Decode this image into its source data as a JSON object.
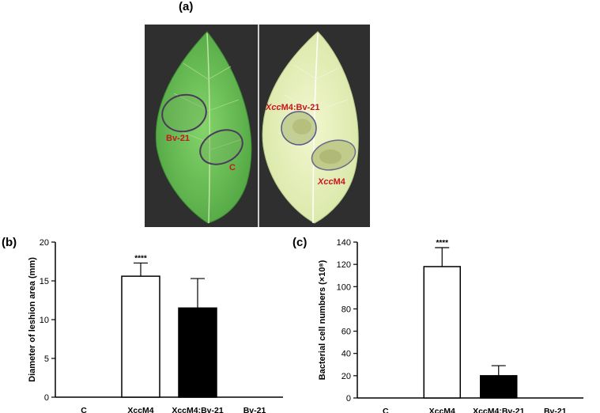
{
  "panel_labels": {
    "a": "(a)",
    "b": "(b)",
    "c": "(c)"
  },
  "photo": {
    "left_leaf_labels": [
      "Bv-21",
      "C"
    ],
    "right_leaf_labels": [
      {
        "italic": "Xcc",
        "rest": "M4:Bv-21"
      },
      {
        "italic": "Xcc",
        "rest": "M4"
      }
    ],
    "label_color": "#c8161d"
  },
  "chart_data": [
    {
      "type": "bar",
      "panel": "(b)",
      "categories": [
        "C",
        "XccM4",
        "XccM4:Bv-21",
        "Bv-21"
      ],
      "values": [
        0,
        15.6,
        11.5,
        0
      ],
      "errors": [
        0,
        1.7,
        3.8,
        0
      ],
      "bar_fill": [
        "#ffffff",
        "#ffffff",
        "#000000",
        "#ffffff"
      ],
      "significance": [
        "",
        "****",
        "",
        ""
      ],
      "ylabel": "Diameter of leshion area (mm)",
      "ylim": [
        0,
        20
      ],
      "yticks": [
        0,
        5,
        10,
        15,
        20
      ],
      "grid": false
    },
    {
      "type": "bar",
      "panel": "(c)",
      "categories": [
        "C",
        "XccM4",
        "XccM4:Bv-21",
        "Bv-21"
      ],
      "values": [
        0,
        118,
        20,
        0
      ],
      "errors": [
        0,
        17,
        9,
        0
      ],
      "bar_fill": [
        "#ffffff",
        "#ffffff",
        "#000000",
        "#ffffff"
      ],
      "significance": [
        "",
        "****",
        "",
        ""
      ],
      "ylabel": "Bacterial cell numbers (×10⁸)",
      "ylim": [
        0,
        140
      ],
      "yticks": [
        0,
        20,
        40,
        60,
        80,
        100,
        120,
        140
      ],
      "grid": false
    }
  ]
}
